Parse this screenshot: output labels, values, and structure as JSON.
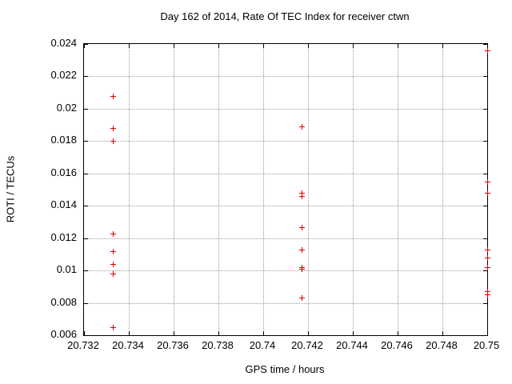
{
  "page": {
    "background_color": "#ffffff",
    "text_color": "#000000",
    "grid_color": "#9a9a9a",
    "border_color": "#000000"
  },
  "chart_data": {
    "type": "scatter",
    "title": "Day 162 of 2014, Rate Of TEC Index for receiver ctwn",
    "xlabel": "GPS time / hours",
    "ylabel": "ROTI / TECUs",
    "xlim": [
      20.732,
      20.75
    ],
    "ylim": [
      0.006,
      0.024
    ],
    "x_tick_labels": [
      "20.732",
      "20.734",
      "20.736",
      "20.738",
      "20.74",
      "20.742",
      "20.744",
      "20.746",
      "20.748",
      "20.75"
    ],
    "y_tick_labels": [
      "0.024",
      "0.022",
      "0.02",
      "0.018",
      "0.016",
      "0.014",
      "0.012",
      "0.01",
      "0.008",
      "0.006"
    ],
    "grid": "dotted",
    "legend_position": "none",
    "marker": "plus",
    "marker_color": "#e00000",
    "series": [
      {
        "name": "ROTI",
        "points": [
          [
            20.7333,
            0.0208
          ],
          [
            20.7333,
            0.0188
          ],
          [
            20.7333,
            0.018
          ],
          [
            20.7333,
            0.0123
          ],
          [
            20.7333,
            0.0112
          ],
          [
            20.7333,
            0.0104
          ],
          [
            20.7333,
            0.0098
          ],
          [
            20.7333,
            0.0065
          ],
          [
            20.7417,
            0.0189
          ],
          [
            20.7417,
            0.0148
          ],
          [
            20.7417,
            0.0146
          ],
          [
            20.7417,
            0.0127
          ],
          [
            20.7417,
            0.0113
          ],
          [
            20.7417,
            0.0102
          ],
          [
            20.7417,
            0.0101
          ],
          [
            20.7417,
            0.0083
          ],
          [
            20.75,
            0.0236
          ],
          [
            20.75,
            0.0155
          ],
          [
            20.75,
            0.0148
          ],
          [
            20.75,
            0.0113
          ],
          [
            20.75,
            0.0108
          ],
          [
            20.75,
            0.0102
          ],
          [
            20.75,
            0.0087
          ],
          [
            20.75,
            0.0085
          ]
        ]
      }
    ]
  }
}
